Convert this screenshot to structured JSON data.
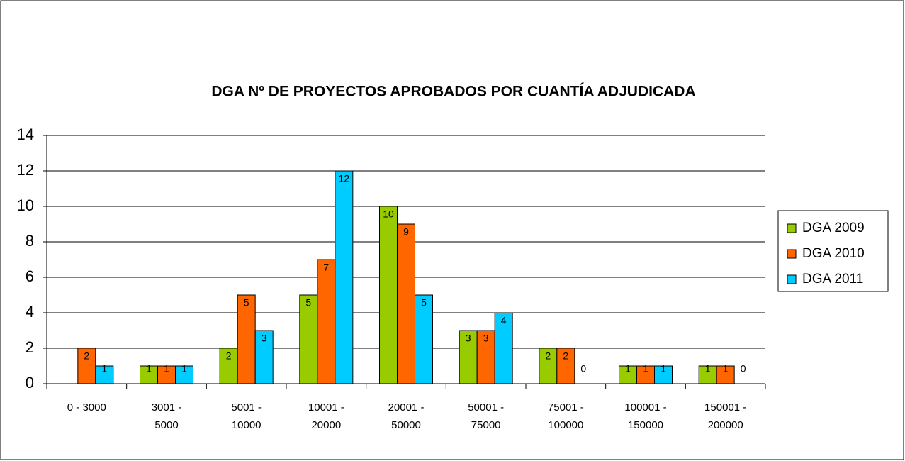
{
  "chart_data": {
    "type": "bar",
    "title": "DGA Nº DE PROYECTOS APROBADOS POR CUANTÍA ADJUDICADA",
    "categories": [
      "0 - 3000",
      "3001 -\n5000",
      "5001 -\n10000",
      "10001 -\n20000",
      "20001 -\n50000",
      "50001 -\n75000",
      "75001 -\n100000",
      "100001 -\n150000",
      "150001 -\n200000"
    ],
    "series": [
      {
        "name": "DGA 2009",
        "color": "#99cc00",
        "values": [
          null,
          1,
          2,
          5,
          10,
          3,
          2,
          1,
          1
        ]
      },
      {
        "name": "DGA 2010",
        "color": "#ff6600",
        "values": [
          2,
          1,
          5,
          7,
          9,
          3,
          2,
          1,
          1
        ]
      },
      {
        "name": "DGA 2011",
        "color": "#00ccff",
        "values": [
          1,
          1,
          3,
          12,
          5,
          4,
          0,
          1,
          0
        ]
      }
    ],
    "ylim": [
      0,
      14
    ],
    "yticks": [
      0,
      2,
      4,
      6,
      8,
      10,
      12,
      14
    ],
    "grid": true,
    "legend": "right"
  }
}
